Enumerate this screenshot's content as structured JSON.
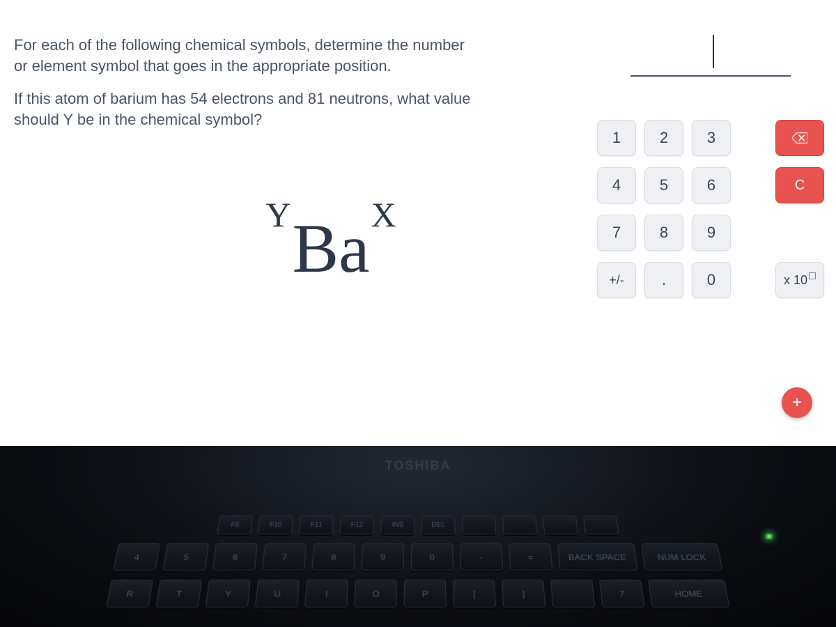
{
  "question": {
    "prompt": "For each of the following chemical symbols, determine the number or element symbol that goes in the appropriate position.",
    "subprompt": "If this atom of barium has 54 electrons and 81 neutrons, what value should Y be in the chemical symbol?"
  },
  "formula": {
    "left_super": "Y",
    "element": "Ba",
    "right_super": "X",
    "font_family": "Times New Roman",
    "color": "#2d3748"
  },
  "answer_input": {
    "value": "",
    "underline_color": "#4a5568"
  },
  "keypad": {
    "keys": {
      "k1": "1",
      "k2": "2",
      "k3": "3",
      "k4": "4",
      "k5": "5",
      "k6": "6",
      "k7": "7",
      "k8": "8",
      "k9": "9",
      "plusminus": "+/-",
      "dot": ".",
      "k0": "0",
      "clear": "C",
      "exp_prefix": "x 10"
    },
    "key_bg": "#eef0f4",
    "key_border": "#d7dbe3",
    "key_text": "#3a4556",
    "accent_bg": "#e8524f",
    "accent_text": "#ffffff"
  },
  "fab": {
    "label": "+",
    "bg": "#e8524f"
  },
  "laptop": {
    "brand": "TOSHIBA",
    "fn_row": [
      "F9",
      "F10",
      "F11",
      "F12",
      "INS",
      "DEL",
      "",
      "",
      "",
      ""
    ],
    "num_row": [
      "4",
      "5",
      "6",
      "7",
      "8",
      "9",
      "0",
      "-",
      "=",
      "BACK SPACE",
      "NUM LOCK"
    ],
    "letter_row": [
      "R",
      "T",
      "Y",
      "U",
      "I",
      "O",
      "P",
      "[",
      "]",
      "",
      "7",
      "HOME"
    ]
  }
}
